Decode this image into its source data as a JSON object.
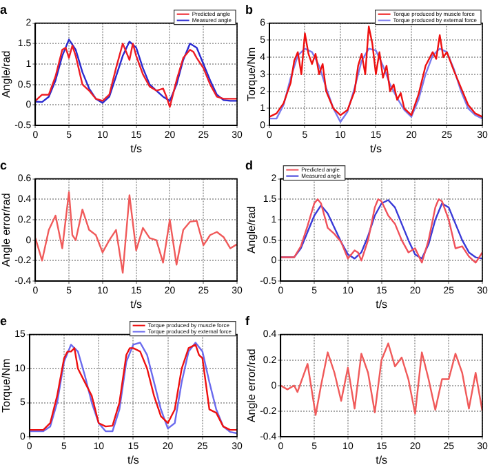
{
  "chart_data": [
    {
      "type": "line",
      "title": "a",
      "xlabel": "t/s",
      "ylabel": "Angle/rad",
      "xlim": [
        0,
        30
      ],
      "xticks": [
        0,
        5,
        10,
        15,
        20,
        25,
        30
      ],
      "ylim": [
        -0.5,
        2
      ],
      "yticks": [
        -0.5,
        0,
        0.5,
        1,
        1.5,
        2
      ],
      "grid": true,
      "legend": "top right",
      "marker": "none",
      "line_style": "solid",
      "series": [
        {
          "name": "Predicted angle",
          "color": "#ee1c24",
          "x": [
            0,
            1,
            2,
            3,
            4,
            4.5,
            5,
            5.5,
            6,
            7,
            8,
            9,
            10,
            11,
            12,
            13,
            13.5,
            14,
            14.5,
            15,
            16,
            17,
            18,
            19,
            19.5,
            20,
            21,
            22,
            23,
            23.5,
            24,
            25,
            26,
            27,
            28,
            29,
            30
          ],
          "values": [
            0.1,
            0.25,
            0.25,
            0.7,
            1.35,
            1.4,
            1.15,
            1.45,
            1.2,
            0.5,
            0.35,
            0.15,
            0.1,
            0.25,
            0.9,
            1.5,
            1.3,
            1.1,
            1.5,
            1.2,
            0.75,
            0.45,
            0.35,
            0.4,
            0.2,
            -0.05,
            0.6,
            1.15,
            1.35,
            1.3,
            1.15,
            0.9,
            0.5,
            0.2,
            0.15,
            0.15,
            0.15
          ]
        },
        {
          "name": "Measured angle",
          "color": "#2a2ad0",
          "x": [
            0,
            1,
            2,
            3,
            4,
            5,
            6,
            7,
            8,
            9,
            10,
            11,
            12,
            13,
            14,
            15,
            16,
            17,
            18,
            19,
            20,
            21,
            22,
            23,
            24,
            25,
            26,
            27,
            28,
            29,
            30
          ],
          "values": [
            0.08,
            0.07,
            0.2,
            0.6,
            1.2,
            1.6,
            1.35,
            0.8,
            0.4,
            0.15,
            0.05,
            0.2,
            0.7,
            1.2,
            1.55,
            1.4,
            0.9,
            0.5,
            0.35,
            0.2,
            0.1,
            0.5,
            1.1,
            1.5,
            1.4,
            1.0,
            0.6,
            0.25,
            0.12,
            0.1,
            0.1
          ]
        }
      ]
    },
    {
      "type": "line",
      "title": "d",
      "xlabel": "t/s",
      "ylabel": "Angle/rad",
      "xlim": [
        0,
        30
      ],
      "xticks": [
        0,
        5,
        10,
        15,
        20,
        25,
        30
      ],
      "ylim": [
        -0.5,
        2
      ],
      "yticks": [
        -0.5,
        0,
        0.5,
        1,
        1.5,
        2
      ],
      "grid": true,
      "legend": "top left",
      "marker": "none",
      "line_style": "solid",
      "series": [
        {
          "name": "Predicted angle",
          "color": "#f0505a",
          "x": [
            0,
            2,
            3,
            4,
            5,
            5.5,
            6,
            7,
            8,
            9,
            10,
            11,
            11.5,
            12,
            13,
            14,
            14.5,
            15,
            16,
            17,
            18,
            19,
            20,
            21,
            22,
            23,
            23.5,
            24,
            25,
            26,
            27,
            28,
            29,
            30
          ],
          "values": [
            0.08,
            0.08,
            0.35,
            0.85,
            1.4,
            1.5,
            1.4,
            0.8,
            0.65,
            0.45,
            0.05,
            0.25,
            0.2,
            0.0,
            0.5,
            1.3,
            1.5,
            1.45,
            1.1,
            0.9,
            0.5,
            0.2,
            0.3,
            -0.05,
            0.5,
            1.3,
            1.5,
            1.45,
            1.0,
            0.3,
            0.35,
            0.1,
            -0.05,
            0.2
          ]
        },
        {
          "name": "Measured angle",
          "color": "#3a3ad8",
          "x": [
            0,
            2,
            3,
            4,
            5,
            6,
            7,
            8,
            9,
            10,
            11,
            12,
            13,
            14,
            15,
            16,
            17,
            18,
            19,
            20,
            21,
            22,
            23,
            24,
            25,
            26,
            27,
            28,
            29,
            30
          ],
          "values": [
            0.08,
            0.08,
            0.3,
            0.7,
            1.1,
            1.35,
            1.15,
            0.8,
            0.45,
            0.15,
            0.05,
            0.2,
            0.6,
            1.1,
            1.4,
            1.48,
            1.3,
            0.9,
            0.5,
            0.15,
            0.05,
            0.4,
            1.0,
            1.4,
            1.3,
            0.9,
            0.5,
            0.2,
            0.08,
            0.05
          ]
        }
      ]
    },
    {
      "type": "line",
      "title": "b",
      "xlabel": "t/s",
      "ylabel": "Torque/Nm",
      "xlim": [
        0,
        30
      ],
      "xticks": [
        0,
        5,
        10,
        15,
        20,
        25,
        30
      ],
      "ylim": [
        0,
        6
      ],
      "yticks": [
        0,
        1,
        2,
        3,
        4,
        5,
        6
      ],
      "grid": true,
      "legend": "top right",
      "marker": "none",
      "line_style": "solid",
      "series": [
        {
          "name": "Torque produced by muscle force",
          "color": "#ee1010",
          "x": [
            0,
            1,
            2,
            3,
            3.5,
            4,
            4.5,
            5,
            5.5,
            6,
            6.5,
            7,
            7.5,
            8,
            9,
            10,
            11,
            12,
            12.5,
            13,
            13.5,
            14,
            14.5,
            15,
            15.5,
            16,
            16.5,
            17,
            17.5,
            18,
            18.5,
            19,
            20,
            21,
            22,
            23,
            23.5,
            24,
            24.5,
            25,
            26,
            27,
            28,
            29,
            30
          ],
          "values": [
            0.5,
            0.7,
            1.3,
            2.5,
            3.8,
            4.3,
            3.0,
            5.4,
            4.2,
            3.6,
            4.2,
            3.0,
            3.6,
            2.0,
            1.0,
            0.6,
            0.9,
            2.0,
            3.5,
            4.2,
            3.0,
            5.8,
            4.8,
            3.0,
            4.3,
            2.8,
            3.5,
            2.0,
            2.4,
            1.5,
            1.9,
            1.0,
            0.6,
            1.8,
            3.5,
            4.3,
            3.9,
            5.3,
            4.0,
            4.3,
            3.2,
            2.2,
            1.2,
            0.7,
            0.5
          ]
        },
        {
          "name": "Torque produced by external force",
          "color": "#7a7aee",
          "x": [
            0,
            1,
            2,
            3,
            4,
            5,
            6,
            7,
            8,
            9,
            10,
            11,
            12,
            13,
            14,
            15,
            16,
            17,
            18,
            19,
            20,
            21,
            22,
            23,
            24,
            25,
            26,
            27,
            28,
            29,
            30
          ],
          "values": [
            0.4,
            0.4,
            1.2,
            2.8,
            4.1,
            4.5,
            4.3,
            3.5,
            2.2,
            1.0,
            0.2,
            0.8,
            2.2,
            3.8,
            4.5,
            4.4,
            3.5,
            2.4,
            1.6,
            0.9,
            0.5,
            1.5,
            3.0,
            4.1,
            4.5,
            4.3,
            3.3,
            2.0,
            1.0,
            0.6,
            0.4
          ]
        }
      ]
    },
    {
      "type": "line",
      "title": "e",
      "xlabel": "t/s",
      "ylabel": "Torque/Nm",
      "xlim": [
        0,
        30
      ],
      "xticks": [
        0,
        5,
        10,
        15,
        20,
        25,
        30
      ],
      "ylim": [
        0,
        15
      ],
      "yticks": [
        0,
        5,
        10,
        15
      ],
      "grid": true,
      "legend": "top right",
      "marker": "none",
      "line_style": "solid",
      "series": [
        {
          "name": "Torque produced by muscle force",
          "color": "#ee1010",
          "x": [
            0,
            2,
            3,
            4,
            5,
            5.5,
            6,
            6.5,
            7,
            8,
            9,
            10,
            11,
            12,
            13,
            14,
            14.5,
            15,
            16,
            17,
            18,
            19,
            20,
            21,
            22,
            23,
            24,
            24.5,
            25,
            26,
            27,
            28,
            29,
            30
          ],
          "values": [
            1,
            1,
            2,
            6,
            11.5,
            12.5,
            12.5,
            13,
            10,
            8,
            6,
            2,
            1.5,
            1.6,
            5,
            12,
            13,
            13,
            12.5,
            10,
            6,
            3,
            2,
            4,
            10,
            13,
            13.5,
            12,
            11.5,
            4,
            3.5,
            1.5,
            1,
            1
          ]
        },
        {
          "name": "Torque produced by external force",
          "color": "#6a6aee",
          "x": [
            0,
            2,
            3,
            4,
            5,
            6,
            7,
            8,
            9,
            10,
            11,
            12,
            13,
            14,
            15,
            16,
            17,
            18,
            19,
            20,
            21,
            22,
            23,
            24,
            25,
            26,
            27,
            28,
            29,
            30
          ],
          "values": [
            0.8,
            0.8,
            1.5,
            5,
            11,
            13.5,
            12.5,
            9,
            5,
            2,
            0.8,
            0.8,
            4,
            11,
            13.5,
            13.8,
            12,
            8,
            4,
            1.2,
            2,
            8,
            12.5,
            13.8,
            12.5,
            8,
            4,
            1.5,
            0.7,
            0.5
          ]
        }
      ]
    },
    {
      "type": "line",
      "title": "c",
      "xlabel": "t/s",
      "ylabel": "Angle error/rad",
      "xlim": [
        0,
        30
      ],
      "xticks": [
        0,
        5,
        10,
        15,
        20,
        25,
        30
      ],
      "ylim": [
        -0.4,
        0.6
      ],
      "yticks": [
        -0.4,
        -0.2,
        0,
        0.2,
        0.4,
        0.6
      ],
      "grid": true,
      "marker": "none",
      "line_style": "solid",
      "series": [
        {
          "color": "#f05a5a",
          "x": [
            0,
            1,
            2,
            3,
            4,
            5,
            5.5,
            6,
            7,
            8,
            9,
            10,
            11,
            12,
            13,
            14,
            15,
            16,
            17,
            18,
            19,
            20,
            21,
            22,
            23,
            24,
            25,
            26,
            27,
            28,
            29,
            30
          ],
          "values": [
            0.02,
            -0.2,
            0.1,
            0.24,
            -0.08,
            0.47,
            0.05,
            0,
            0.3,
            0.1,
            0.05,
            -0.12,
            0,
            0.1,
            -0.32,
            0.44,
            -0.1,
            0.12,
            0.02,
            0,
            -0.22,
            0.2,
            -0.24,
            0.1,
            0.18,
            0.19,
            -0.05,
            0.05,
            0.08,
            0.03,
            -0.08,
            -0.04
          ]
        }
      ]
    },
    {
      "type": "line",
      "title": "f",
      "xlabel": "t/s",
      "ylabel": "Angle error/rad",
      "xlim": [
        0,
        30
      ],
      "xticks": [
        0,
        5,
        10,
        15,
        20,
        25,
        30
      ],
      "ylim": [
        -0.4,
        0.4
      ],
      "yticks": [
        -0.4,
        -0.2,
        0,
        0.2,
        0.4
      ],
      "grid": true,
      "marker": "none",
      "line_style": "solid",
      "series": [
        {
          "color": "#f05a5a",
          "x": [
            0,
            1,
            2,
            2.5,
            4,
            5.2,
            6,
            7,
            8,
            9,
            10,
            11,
            12,
            13,
            14,
            15,
            16,
            17,
            18,
            19,
            20,
            21,
            22,
            23,
            24,
            25,
            26,
            27,
            28,
            29,
            30
          ],
          "values": [
            0,
            -0.03,
            0,
            -0.05,
            0.17,
            -0.23,
            0,
            0.26,
            0.1,
            -0.12,
            0.14,
            -0.18,
            0.25,
            0.1,
            -0.21,
            0.2,
            0.33,
            0.15,
            0.22,
            0.05,
            -0.22,
            0.26,
            0.05,
            -0.19,
            0.05,
            0.05,
            0.25,
            0.1,
            -0.18,
            0.1,
            -0.2
          ]
        }
      ]
    }
  ]
}
